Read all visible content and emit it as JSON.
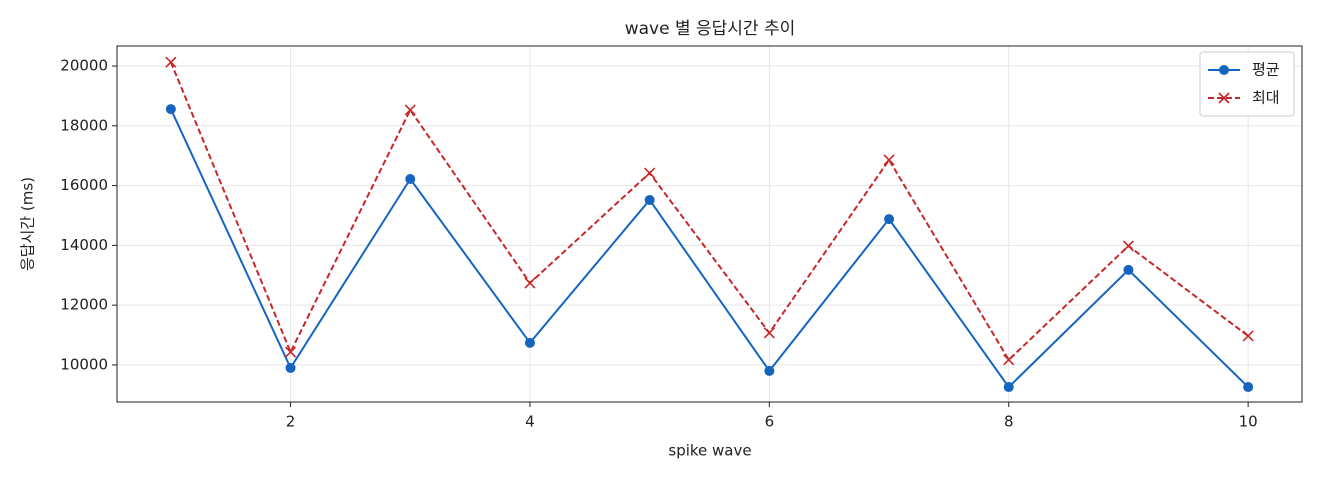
{
  "chart_data": {
    "type": "line",
    "title": "wave 별 응답시간 추이",
    "xlabel": "spike wave",
    "ylabel": "응답시간 (ms)",
    "x": [
      1,
      2,
      3,
      4,
      5,
      6,
      7,
      8,
      9,
      10
    ],
    "series": [
      {
        "name": "평균",
        "color": "#1565c0",
        "marker": "circle",
        "dashed": false,
        "values": [
          18560,
          9900,
          16220,
          10740,
          15520,
          9800,
          14880,
          9260,
          13180,
          9260
        ]
      },
      {
        "name": "최대",
        "color": "#c62828",
        "marker": "x",
        "dashed": true,
        "values": [
          20130,
          10430,
          18530,
          12740,
          16420,
          11070,
          16860,
          10170,
          13980,
          10970
        ]
      }
    ],
    "xlim": [
      0.55,
      10.45
    ],
    "xticks": [
      2,
      4,
      6,
      8,
      10
    ],
    "ylim": [
      8760,
      20670
    ],
    "yticks": [
      10000,
      12000,
      14000,
      16000,
      18000,
      20000
    ],
    "grid": true,
    "legend": "upper right"
  }
}
